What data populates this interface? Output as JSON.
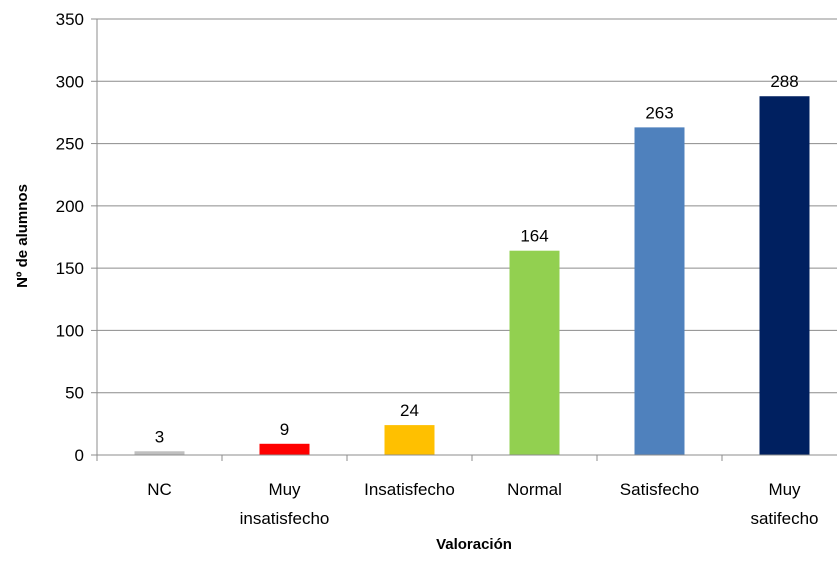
{
  "chart_data": {
    "type": "bar",
    "categories": [
      [
        "NC"
      ],
      [
        "Muy",
        "insatisfecho"
      ],
      [
        "Insatisfecho"
      ],
      [
        "Normal"
      ],
      [
        "Satisfecho"
      ],
      [
        "Muy",
        "satifecho"
      ]
    ],
    "values": [
      3,
      9,
      24,
      164,
      263,
      288
    ],
    "data_labels": [
      "3",
      "9",
      "24",
      "164",
      "263",
      "288"
    ],
    "colors": [
      "#bfbfbf",
      "#ff0000",
      "#ffc000",
      "#92d050",
      "#4f81bd",
      "#002060"
    ],
    "xlabel": "Valoración",
    "ylabel": "Nº de alumnos",
    "ylim": [
      0,
      350
    ],
    "yticks": [
      0,
      50,
      100,
      150,
      200,
      250,
      300,
      350
    ],
    "grid": true,
    "legend": false
  }
}
